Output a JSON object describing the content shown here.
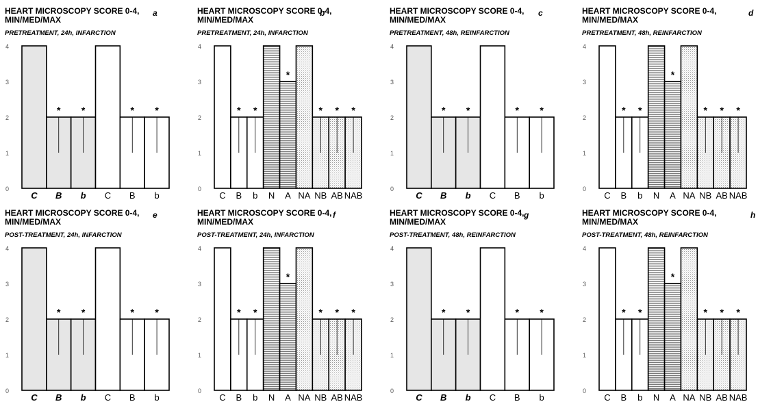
{
  "chart_data": [
    {
      "id": "a",
      "type": "bar",
      "title": "HEART MICROSCOPY SCORE 0-4, MIN/MED/MAX",
      "letter": "a",
      "subtitle": "PRETREATMENT, 24h, INFARCTION",
      "ylim": [
        0,
        4
      ],
      "yticks": [
        "0",
        "1",
        "2",
        "3",
        "4"
      ],
      "categories": [
        "C",
        "B",
        "b",
        "C",
        "B",
        "b"
      ],
      "italic": [
        true,
        true,
        true,
        false,
        false,
        false
      ],
      "values": [
        4,
        2,
        2,
        4,
        2,
        2
      ],
      "min": [
        4,
        1,
        1,
        4,
        1,
        1
      ],
      "star": [
        "",
        "*",
        "*",
        "",
        "*",
        "*"
      ],
      "fill": [
        "#e6e6e6",
        "#e6e6e6",
        "#e6e6e6",
        "#ffffff",
        "#ffffff",
        "#ffffff"
      ],
      "pattern": [
        "solid",
        "solid",
        "solid",
        "solid",
        "solid",
        "solid"
      ]
    },
    {
      "id": "b",
      "type": "bar",
      "title": "HEART MICROSCOPY SCORE 0-4, MIN/MED/MAX",
      "letter": "b",
      "subtitle": "PRETREATMENT, 24h, INFARCTION",
      "ylim": [
        0,
        4
      ],
      "yticks": [
        "0",
        "1",
        "2",
        "3",
        "4"
      ],
      "categories": [
        "C",
        "B",
        "b",
        "N",
        "A",
        "NA",
        "NB",
        "AB",
        "NAB"
      ],
      "italic": [
        false,
        false,
        false,
        false,
        false,
        false,
        false,
        false,
        false
      ],
      "values": [
        4,
        2,
        2,
        4,
        3,
        4,
        2,
        2,
        2
      ],
      "min": [
        4,
        1,
        1,
        4,
        3,
        4,
        1,
        1,
        1
      ],
      "star": [
        "",
        "*",
        "*",
        "",
        "*",
        "",
        "*",
        "*",
        "*"
      ],
      "fill": [
        "#ffffff",
        "#ffffff",
        "#ffffff",
        "#ffffff",
        "#ffffff",
        "#ffffff",
        "#ffffff",
        "#ffffff",
        "#ffffff"
      ],
      "pattern": [
        "solid",
        "solid",
        "solid",
        "hlines",
        "hlines",
        "dots",
        "dots",
        "dots",
        "dots"
      ]
    },
    {
      "id": "c",
      "type": "bar",
      "title": "HEART MICROSCOPY SCORE 0-4, MIN/MED/MAX",
      "letter": "c",
      "subtitle": "PRETREATMENT, 48h, REINFARCTION",
      "ylim": [
        0,
        4
      ],
      "yticks": [
        "0",
        "1",
        "2",
        "3",
        "4"
      ],
      "categories": [
        "C",
        "B",
        "b",
        "C",
        "B",
        "b"
      ],
      "italic": [
        true,
        true,
        true,
        false,
        false,
        false
      ],
      "values": [
        4,
        2,
        2,
        4,
        2,
        2
      ],
      "min": [
        4,
        1,
        1,
        4,
        1,
        1
      ],
      "star": [
        "",
        "*",
        "*",
        "",
        "*",
        "*"
      ],
      "fill": [
        "#e6e6e6",
        "#e6e6e6",
        "#e6e6e6",
        "#ffffff",
        "#ffffff",
        "#ffffff"
      ],
      "pattern": [
        "solid",
        "solid",
        "solid",
        "solid",
        "solid",
        "solid"
      ]
    },
    {
      "id": "d",
      "type": "bar",
      "title": "HEART MICROSCOPY SCORE 0-4, MIN/MED/MAX",
      "letter": "d",
      "subtitle": "PRETREATMENT, 48h, REINFARCTION",
      "ylim": [
        0,
        4
      ],
      "yticks": [
        "0",
        "1",
        "2",
        "3",
        "4"
      ],
      "categories": [
        "C",
        "B",
        "b",
        "N",
        "A",
        "NA",
        "NB",
        "AB",
        "NAB"
      ],
      "italic": [
        false,
        false,
        false,
        false,
        false,
        false,
        false,
        false,
        false
      ],
      "values": [
        4,
        2,
        2,
        4,
        3,
        4,
        2,
        2,
        2
      ],
      "min": [
        4,
        1,
        1,
        4,
        3,
        4,
        1,
        1,
        1
      ],
      "star": [
        "",
        "*",
        "*",
        "",
        "*",
        "",
        "*",
        "*",
        "*"
      ],
      "fill": [
        "#ffffff",
        "#ffffff",
        "#ffffff",
        "#ffffff",
        "#ffffff",
        "#ffffff",
        "#ffffff",
        "#ffffff",
        "#ffffff"
      ],
      "pattern": [
        "solid",
        "solid",
        "solid",
        "hlines",
        "hlines",
        "dots",
        "dots",
        "dots",
        "dots"
      ]
    },
    {
      "id": "e",
      "type": "bar",
      "title": "HEART MICROSCOPY SCORE 0-4, MIN/MED/MAX",
      "letter": "e",
      "subtitle": "POST-TREATMENT, 24h, INFARCTION",
      "ylim": [
        0,
        4
      ],
      "yticks": [
        "0",
        "1",
        "2",
        "3",
        "4"
      ],
      "categories": [
        "C",
        "B",
        "b",
        "C",
        "B",
        "b"
      ],
      "italic": [
        true,
        true,
        true,
        false,
        false,
        false
      ],
      "values": [
        4,
        2,
        2,
        4,
        2,
        2
      ],
      "min": [
        4,
        1,
        1,
        4,
        1,
        1
      ],
      "star": [
        "",
        "*",
        "*",
        "",
        "*",
        "*"
      ],
      "fill": [
        "#e6e6e6",
        "#e6e6e6",
        "#e6e6e6",
        "#ffffff",
        "#ffffff",
        "#ffffff"
      ],
      "pattern": [
        "solid",
        "solid",
        "solid",
        "solid",
        "solid",
        "solid"
      ]
    },
    {
      "id": "f",
      "type": "bar",
      "title": "HEART MICROSCOPY SCORE 0-4, MIN/MED/MAX",
      "letter": "f",
      "subtitle": "POST-TREATMENT, 24h, INFARCTION",
      "ylim": [
        0,
        4
      ],
      "yticks": [
        "0",
        "1",
        "2",
        "3",
        "4"
      ],
      "categories": [
        "C",
        "B",
        "b",
        "N",
        "A",
        "NA",
        "NB",
        "AB",
        "NAB"
      ],
      "italic": [
        false,
        false,
        false,
        false,
        false,
        false,
        false,
        false,
        false
      ],
      "values": [
        4,
        2,
        2,
        4,
        3,
        4,
        2,
        2,
        2
      ],
      "min": [
        4,
        1,
        1,
        4,
        3,
        4,
        1,
        1,
        1
      ],
      "star": [
        "",
        "*",
        "*",
        "",
        "*",
        "",
        "*",
        "*",
        "*"
      ],
      "fill": [
        "#ffffff",
        "#ffffff",
        "#ffffff",
        "#ffffff",
        "#ffffff",
        "#ffffff",
        "#ffffff",
        "#ffffff",
        "#ffffff"
      ],
      "pattern": [
        "solid",
        "solid",
        "solid",
        "hlines",
        "hlines",
        "dots",
        "dots",
        "dots",
        "dots"
      ]
    },
    {
      "id": "g",
      "type": "bar",
      "title": "HEART MICROSCOPY SCORE 0-4, MIN/MED/MAX",
      "letter": "g",
      "subtitle": "POST-TREATMENT, 48h, REINFARCTION",
      "ylim": [
        0,
        4
      ],
      "yticks": [
        "0",
        "1",
        "2",
        "3",
        "4"
      ],
      "categories": [
        "C",
        "B",
        "b",
        "C",
        "B",
        "b"
      ],
      "italic": [
        true,
        true,
        true,
        false,
        false,
        false
      ],
      "values": [
        4,
        2,
        2,
        4,
        2,
        2
      ],
      "min": [
        4,
        1,
        1,
        4,
        1,
        1
      ],
      "star": [
        "",
        "*",
        "*",
        "",
        "*",
        "*"
      ],
      "fill": [
        "#e6e6e6",
        "#e6e6e6",
        "#e6e6e6",
        "#ffffff",
        "#ffffff",
        "#ffffff"
      ],
      "pattern": [
        "solid",
        "solid",
        "solid",
        "solid",
        "solid",
        "solid"
      ]
    },
    {
      "id": "h",
      "type": "bar",
      "title": "HEART MICROSCOPY SCORE 0-4, MIN/MED/MAX",
      "letter": "h",
      "subtitle": "POST-TREATMENT, 48h, REINFARCTION",
      "ylim": [
        0,
        4
      ],
      "yticks": [
        "0",
        "1",
        "2",
        "3",
        "4"
      ],
      "categories": [
        "C",
        "B",
        "b",
        "N",
        "A",
        "NA",
        "NB",
        "AB",
        "NAB"
      ],
      "italic": [
        false,
        false,
        false,
        false,
        false,
        false,
        false,
        false,
        false
      ],
      "values": [
        4,
        2,
        2,
        4,
        3,
        4,
        2,
        2,
        2
      ],
      "min": [
        4,
        1,
        1,
        4,
        3,
        4,
        1,
        1,
        1
      ],
      "star": [
        "",
        "*",
        "*",
        "",
        "*",
        "",
        "*",
        "*",
        "*"
      ],
      "fill": [
        "#ffffff",
        "#ffffff",
        "#ffffff",
        "#ffffff",
        "#ffffff",
        "#ffffff",
        "#ffffff",
        "#ffffff",
        "#ffffff"
      ],
      "pattern": [
        "solid",
        "solid",
        "solid",
        "hlines",
        "hlines",
        "dots",
        "dots",
        "dots",
        "dots"
      ]
    }
  ]
}
